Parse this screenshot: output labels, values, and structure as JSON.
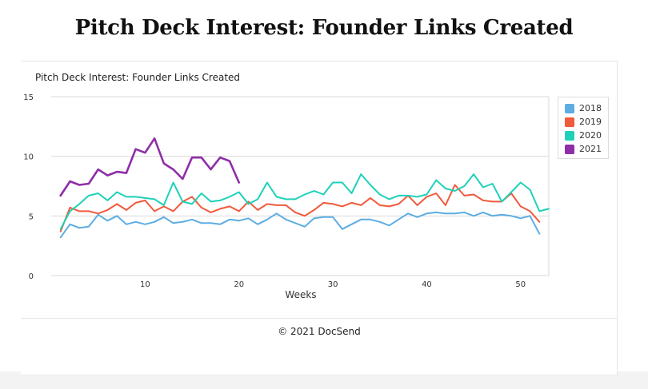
{
  "page_title": "Pitch Deck Interest: Founder Links Created",
  "footer": "© 2021 DocSend",
  "chart_data": {
    "type": "line",
    "title": "Pitch Deck Interest: Founder Links Created",
    "xlabel": "Weeks",
    "ylabel": "",
    "xlim": [
      0,
      53
    ],
    "ylim": [
      0,
      15
    ],
    "x_ticks": [
      10,
      20,
      30,
      40,
      50
    ],
    "y_ticks": [
      0,
      5,
      10,
      15
    ],
    "grid": "horizontal",
    "legend_position": "right",
    "series": [
      {
        "name": "2018",
        "color": "#5dade2",
        "x": [
          1,
          2,
          3,
          4,
          5,
          6,
          7,
          8,
          9,
          10,
          11,
          12,
          13,
          14,
          15,
          16,
          17,
          18,
          19,
          20,
          21,
          22,
          23,
          24,
          25,
          26,
          27,
          28,
          29,
          30,
          31,
          32,
          33,
          34,
          35,
          36,
          37,
          38,
          39,
          40,
          41,
          42,
          43,
          44,
          45,
          46,
          47,
          48,
          49,
          50,
          51,
          52
        ],
        "values": [
          3.2,
          4.3,
          4.0,
          4.1,
          5.1,
          4.6,
          5.0,
          4.3,
          4.5,
          4.3,
          4.5,
          4.9,
          4.4,
          4.5,
          4.7,
          4.4,
          4.4,
          4.3,
          4.7,
          4.6,
          4.8,
          4.3,
          4.7,
          5.2,
          4.7,
          4.4,
          4.1,
          4.8,
          4.9,
          4.9,
          3.9,
          4.3,
          4.7,
          4.7,
          4.5,
          4.2,
          4.7,
          5.2,
          4.9,
          5.2,
          5.3,
          5.2,
          5.2,
          5.3,
          5.0,
          5.3,
          5.0,
          5.1,
          5.0,
          4.8,
          5.0,
          3.5
        ]
      },
      {
        "name": "2019",
        "color": "#f05a3d",
        "x": [
          1,
          2,
          3,
          4,
          5,
          6,
          7,
          8,
          9,
          10,
          11,
          12,
          13,
          14,
          15,
          16,
          17,
          18,
          19,
          20,
          21,
          22,
          23,
          24,
          25,
          26,
          27,
          28,
          29,
          30,
          31,
          32,
          33,
          34,
          35,
          36,
          37,
          38,
          39,
          40,
          41,
          42,
          43,
          44,
          45,
          46,
          47,
          48,
          49,
          50,
          51,
          52
        ],
        "values": [
          3.7,
          5.7,
          5.4,
          5.4,
          5.2,
          5.5,
          6.0,
          5.5,
          6.1,
          6.3,
          5.4,
          5.8,
          5.4,
          6.2,
          6.6,
          5.7,
          5.3,
          5.6,
          5.8,
          5.4,
          6.2,
          5.5,
          6.0,
          5.9,
          5.9,
          5.3,
          5.0,
          5.5,
          6.1,
          6.0,
          5.8,
          6.1,
          5.9,
          6.5,
          5.9,
          5.8,
          6.0,
          6.7,
          5.9,
          6.6,
          6.9,
          5.9,
          7.6,
          6.7,
          6.8,
          6.3,
          6.2,
          6.2,
          6.9,
          5.8,
          5.4,
          4.5
        ]
      },
      {
        "name": "2020",
        "color": "#1fd1b9",
        "x": [
          1,
          2,
          3,
          4,
          5,
          6,
          7,
          8,
          9,
          10,
          11,
          12,
          13,
          14,
          15,
          16,
          17,
          18,
          19,
          20,
          21,
          22,
          23,
          24,
          25,
          26,
          27,
          28,
          29,
          30,
          31,
          32,
          33,
          34,
          35,
          36,
          37,
          38,
          39,
          40,
          41,
          42,
          43,
          44,
          45,
          46,
          47,
          48,
          49,
          50,
          51,
          52,
          53
        ],
        "values": [
          3.9,
          5.4,
          6.0,
          6.7,
          6.9,
          6.3,
          7.0,
          6.6,
          6.6,
          6.5,
          6.4,
          5.9,
          7.8,
          6.2,
          6.0,
          6.9,
          6.2,
          6.3,
          6.6,
          7.0,
          6.0,
          6.4,
          7.8,
          6.6,
          6.4,
          6.4,
          6.8,
          7.1,
          6.8,
          7.8,
          7.8,
          6.9,
          8.5,
          7.6,
          6.8,
          6.4,
          6.7,
          6.7,
          6.6,
          6.8,
          8.0,
          7.3,
          7.1,
          7.5,
          8.5,
          7.4,
          7.7,
          6.2,
          7.0,
          7.8,
          7.2,
          5.4,
          5.6
        ]
      },
      {
        "name": "2021",
        "color": "#8e2ea8",
        "x": [
          1,
          2,
          3,
          4,
          5,
          6,
          7,
          8,
          9,
          10,
          11,
          12,
          13,
          14,
          15,
          16,
          17,
          18,
          19,
          20
        ],
        "values": [
          6.7,
          7.9,
          7.6,
          7.7,
          8.9,
          8.4,
          8.7,
          8.6,
          10.6,
          10.3,
          11.5,
          9.4,
          8.9,
          8.1,
          9.9,
          9.9,
          8.9,
          9.9,
          9.6,
          7.8
        ]
      }
    ]
  }
}
